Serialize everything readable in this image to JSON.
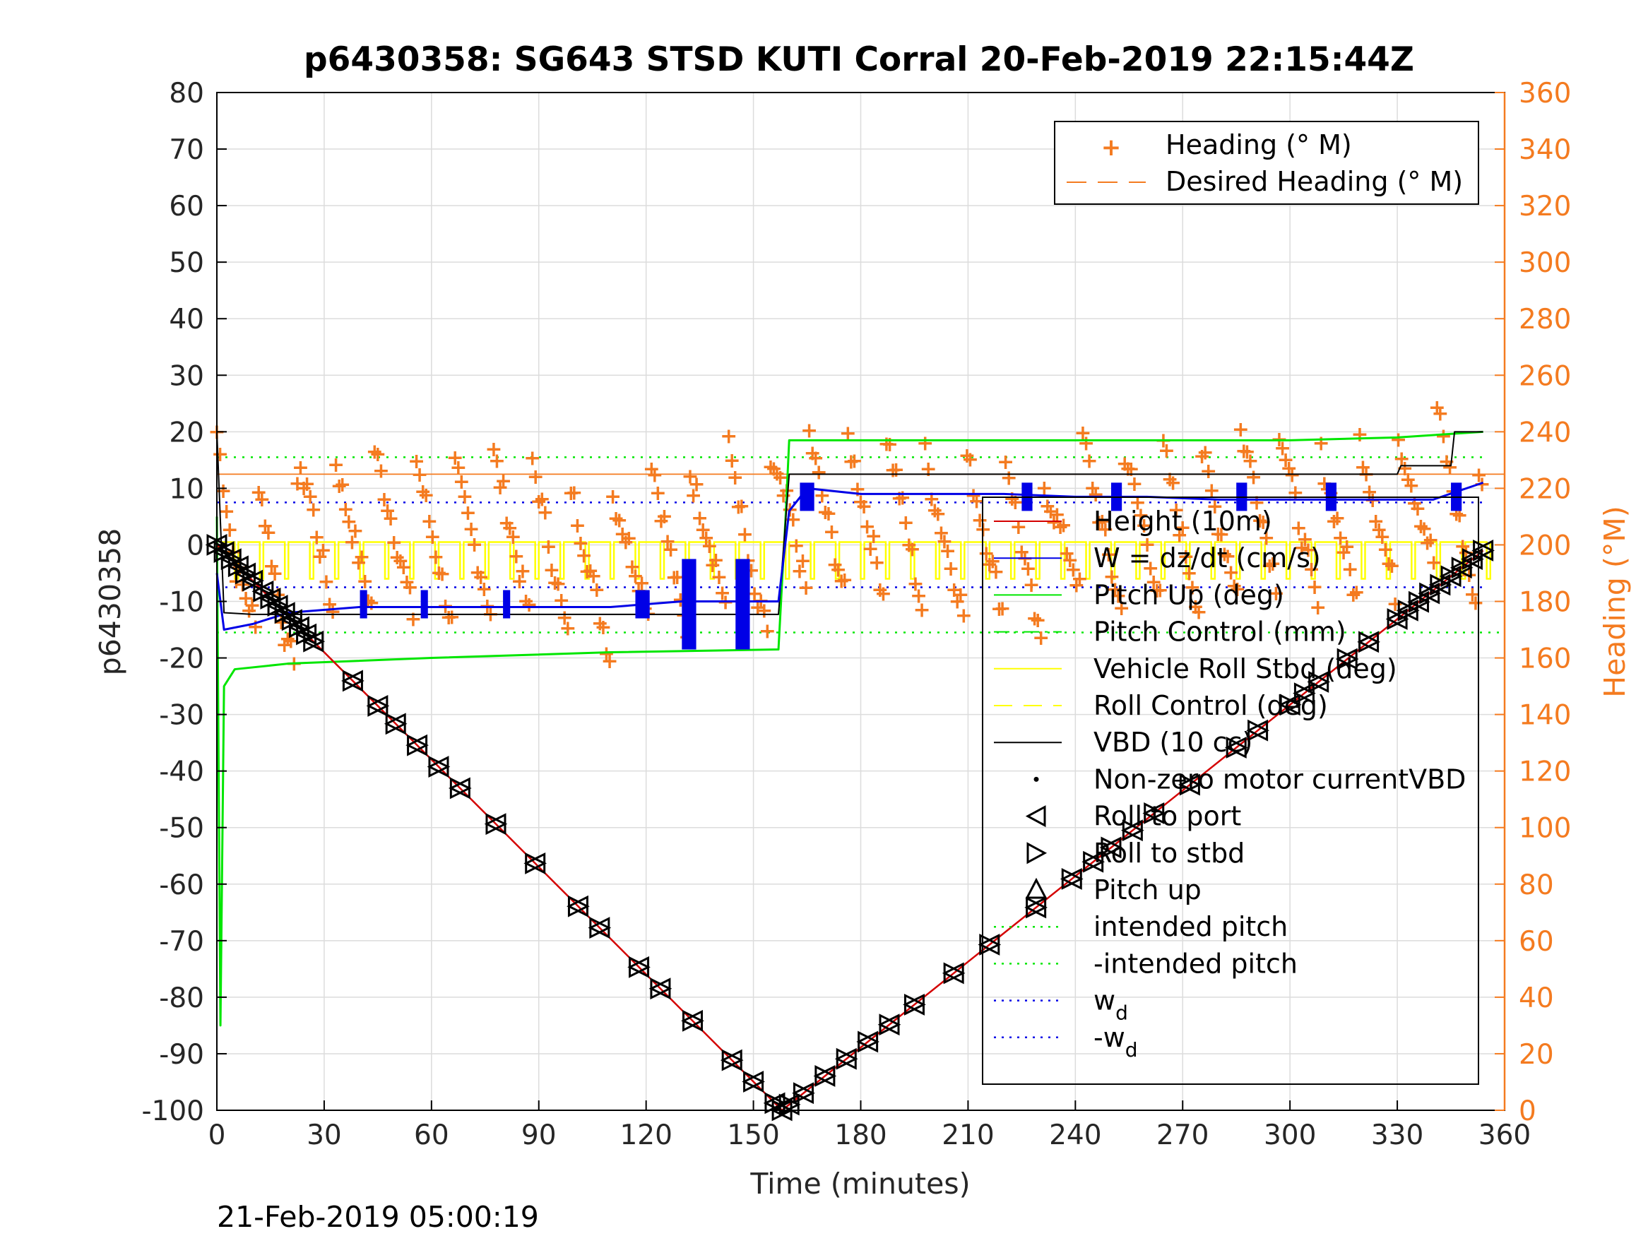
{
  "chart_data": {
    "type": "line",
    "title": "p6430358: SG643 STSD KUTI Corral 20-Feb-2019 22:15:44Z",
    "xlabel": "Time (minutes)",
    "ylabel": "p6430358",
    "y2label": "Heading (°M)",
    "timestamp": "21-Feb-2019 05:00:19",
    "xlim": [
      0,
      360
    ],
    "ylim": [
      -100,
      80
    ],
    "y2lim": [
      0,
      360
    ],
    "grid": true,
    "x_ticks": [
      "0",
      "30",
      "60",
      "90",
      "120",
      "150",
      "180",
      "210",
      "240",
      "270",
      "300",
      "330",
      "360"
    ],
    "y_ticks": [
      "-100",
      "-90",
      "-80",
      "-70",
      "-60",
      "-50",
      "-40",
      "-30",
      "-20",
      "-10",
      "0",
      "10",
      "20",
      "30",
      "40",
      "50",
      "60",
      "70",
      "80"
    ],
    "y2_ticks": [
      "0",
      "20",
      "40",
      "60",
      "80",
      "100",
      "120",
      "140",
      "160",
      "180",
      "200",
      "220",
      "240",
      "260",
      "280",
      "300",
      "320",
      "340",
      "360"
    ],
    "colors": {
      "heading": "#f47b20",
      "depth": "#d40000",
      "w": "#0000e6",
      "pitch": "#00e600",
      "roll": "#ffff00",
      "vbd": "#000000"
    },
    "legend_top": {
      "placement": "top-right",
      "entries": [
        "Heading (° M)",
        "Desired Heading (° M)"
      ]
    },
    "legend_main": {
      "placement": "right",
      "entries": [
        "Height (10m)",
        "W = dz/dt (cm/s)",
        "Pitch Up (deg)",
        "Pitch Control (mm)",
        "Vehicle Roll Stbd (deg)",
        "Roll Control (deg)",
        "VBD (10 cc)",
        "Non-zero motor currentVBD",
        "Roll to port",
        "Roll to stbd",
        "Pitch up",
        "intended pitch",
        "-intended pitch",
        "w",
        "-w"
      ],
      "subscript": "d"
    },
    "series": [
      {
        "name": "Height (10m)",
        "x": [
          0,
          158,
          354
        ],
        "y": [
          0,
          -100,
          -1
        ]
      },
      {
        "name": "W = dz/dt (cm/s)",
        "x": [
          0,
          2,
          10,
          20,
          40,
          60,
          90,
          110,
          130,
          150,
          157,
          160,
          165,
          180,
          200,
          220,
          240,
          260,
          280,
          300,
          320,
          340,
          354
        ],
        "y": [
          -5,
          -15,
          -14,
          -12,
          -11,
          -11,
          -11,
          -11,
          -10,
          -10,
          -10,
          6,
          10,
          9,
          9,
          9,
          8.5,
          8.5,
          8,
          8,
          8,
          8,
          11
        ]
      },
      {
        "name": "Pitch Up (deg)",
        "x": [
          0,
          1,
          2,
          5,
          20,
          60,
          110,
          157,
          159,
          160,
          200,
          250,
          300,
          330,
          354
        ],
        "y": [
          5,
          -85,
          -25,
          -22,
          -21,
          -20,
          -19,
          -18.5,
          5,
          18.5,
          18.5,
          18.5,
          18.5,
          19,
          20
        ]
      },
      {
        "name": "Pitch Control (mm)",
        "x": [
          0,
          360
        ],
        "y": [
          -15.5,
          -15.5
        ]
      },
      {
        "name": "VBD (10 cc)",
        "x": [
          0,
          2,
          10,
          157,
          160,
          330,
          331,
          345,
          346,
          354
        ],
        "y": [
          20,
          -12,
          -12.3,
          -12.3,
          12.5,
          12.5,
          14,
          14,
          20,
          20
        ]
      },
      {
        "name": "Heading (° M)",
        "x": [
          0,
          5,
          10,
          20,
          25,
          35,
          45,
          55,
          65,
          80,
          90,
          100,
          110,
          120,
          130,
          140,
          145,
          150,
          160,
          170,
          180,
          190,
          200,
          210,
          220,
          230,
          240,
          250,
          260,
          270,
          280,
          290,
          300,
          310,
          320,
          330,
          340,
          350,
          354
        ],
        "y": [
          240,
          220,
          230,
          210,
          240,
          230,
          235,
          235,
          230,
          235,
          230,
          220,
          220,
          235,
          225,
          235,
          235,
          220,
          245,
          240,
          240,
          240,
          230,
          235,
          235,
          220,
          240,
          235,
          240,
          235,
          235,
          245,
          240,
          235,
          240,
          240,
          250,
          240,
          230
        ]
      },
      {
        "name": "Desired Heading (° M)",
        "x": [
          0,
          360
        ],
        "y": [
          225,
          225
        ]
      }
    ]
  }
}
